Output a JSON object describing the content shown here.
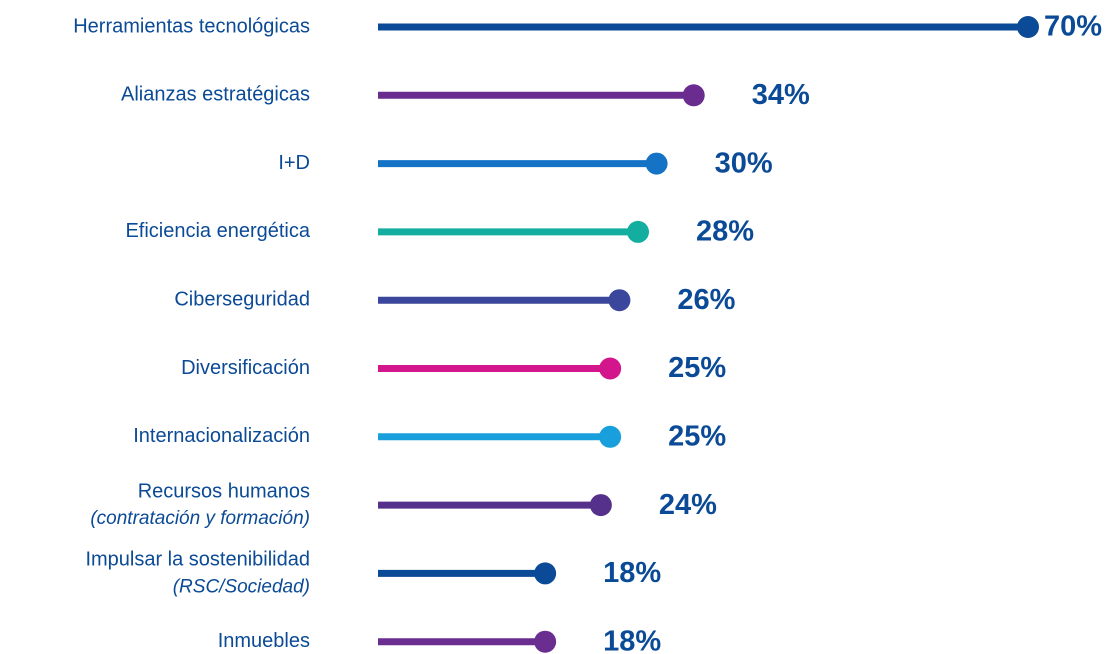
{
  "chart_data": {
    "type": "lollipop",
    "categories": [
      "Herramientas tecnológicas",
      "Alianzas estratégicas",
      "I+D",
      "Eficiencia energética",
      "Ciberseguridad",
      "Diversificación",
      "Internacionalización",
      "Recursos humanos",
      "Impulsar la sostenibilidad",
      "Inmuebles"
    ],
    "category_notes": [
      null,
      null,
      null,
      null,
      null,
      null,
      null,
      "(contratación y formación)",
      "(RSC/Sociedad)",
      null
    ],
    "values": [
      70,
      34,
      30,
      28,
      26,
      25,
      25,
      24,
      18,
      18
    ],
    "value_labels": [
      "70%",
      "34%",
      "30%",
      "28%",
      "26%",
      "25%",
      "25%",
      "24%",
      "18%",
      "18%"
    ],
    "colors": [
      "#0b4a96",
      "#6b2c8f",
      "#1473c4",
      "#14aea0",
      "#3b479c",
      "#d4168c",
      "#19a0dc",
      "#55318b",
      "#0b4a96",
      "#6a2e91"
    ],
    "xlim": [
      0,
      70
    ]
  }
}
